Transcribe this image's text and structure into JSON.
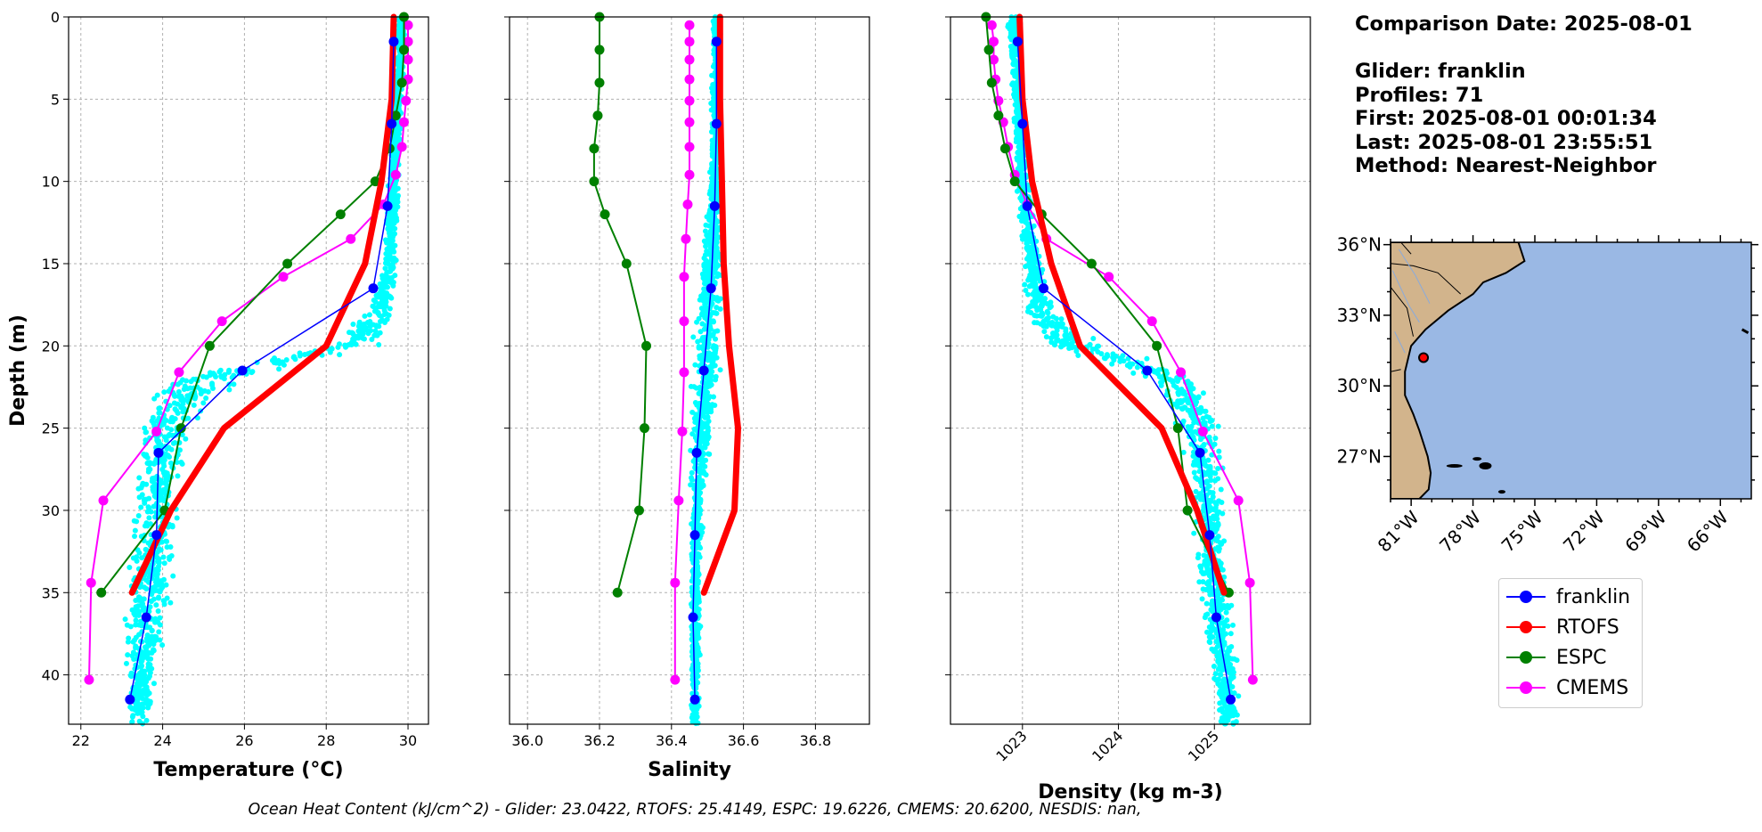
{
  "info": {
    "comparison_date": "Comparison Date: 2025-08-01",
    "glider": "Glider: franklin",
    "profiles": "Profiles: 71",
    "first": "First: 2025-08-01 00:01:34",
    "last": "Last: 2025-08-01 23:55:51",
    "method": "Method: Nearest-Neighbor"
  },
  "footer": "Ocean Heat Content (kJ/cm^2) - Glider: 23.0422,  RTOFS: 25.4149,  ESPC: 19.6226,  CMEMS: 20.6200,  NESDIS: nan,",
  "colors": {
    "franklin": "#0000ff",
    "rtofs": "#ff0000",
    "espc": "#008000",
    "cmems": "#ff00ff",
    "obs": "#00ffff",
    "land": "#d2b48c",
    "ocean": "#9ab8e4"
  },
  "legend": [
    {
      "label": "franklin",
      "color": "#0000ff"
    },
    {
      "label": "RTOFS",
      "color": "#ff0000"
    },
    {
      "label": "ESPC",
      "color": "#008000"
    },
    {
      "label": "CMEMS",
      "color": "#ff00ff"
    }
  ],
  "chart_data": [
    {
      "type": "line",
      "xlabel": "Temperature (°C)",
      "ylabel": "Depth (m)",
      "xlim": [
        21.7,
        30.5
      ],
      "ylim": [
        43,
        0
      ],
      "xticks": [
        22,
        24,
        26,
        28,
        30
      ],
      "yticks": [
        0,
        5,
        10,
        15,
        20,
        25,
        30,
        35,
        40
      ],
      "grid": true,
      "series": [
        {
          "name": "franklin",
          "color": "#0000ff",
          "width": 1.5,
          "depth": [
            1.5,
            6.5,
            11.5,
            16.5,
            21.5,
            26.5,
            31.5,
            36.5,
            41.5
          ],
          "values": [
            29.65,
            29.6,
            29.5,
            29.15,
            25.95,
            23.9,
            23.85,
            23.6,
            23.2
          ]
        },
        {
          "name": "RTOFS",
          "color": "#ff0000",
          "width": 7,
          "depth": [
            0,
            5,
            10,
            15,
            20,
            25,
            30,
            35
          ],
          "values": [
            29.65,
            29.6,
            29.35,
            28.95,
            28.0,
            25.5,
            24.2,
            23.25
          ]
        },
        {
          "name": "ESPC",
          "color": "#008000",
          "width": 2,
          "depth": [
            0,
            2,
            4,
            6,
            8,
            10,
            12,
            15,
            20,
            25,
            30,
            35
          ],
          "values": [
            29.9,
            29.9,
            29.85,
            29.7,
            29.55,
            29.2,
            28.35,
            27.05,
            25.15,
            24.45,
            24.05,
            22.5
          ]
        },
        {
          "name": "CMEMS",
          "color": "#ff00ff",
          "width": 2,
          "depth": [
            0.5,
            1.5,
            2.6,
            3.8,
            5.1,
            6.4,
            7.9,
            9.6,
            11.4,
            13.5,
            15.8,
            18.5,
            21.6,
            25.2,
            29.4,
            34.4,
            40.3
          ],
          "values": [
            30.0,
            30.0,
            30.0,
            30.0,
            29.95,
            29.9,
            29.85,
            29.7,
            29.4,
            28.6,
            26.95,
            25.45,
            24.4,
            23.85,
            22.55,
            22.25,
            22.2
          ]
        }
      ]
    },
    {
      "type": "line",
      "xlabel": "Salinity",
      "xlim": [
        35.95,
        36.95
      ],
      "ylim": [
        43,
        0
      ],
      "xticks": [
        36.0,
        36.2,
        36.4,
        36.6,
        36.8
      ],
      "grid": true,
      "series": [
        {
          "name": "franklin",
          "color": "#0000ff",
          "width": 1.5,
          "depth": [
            1.5,
            6.5,
            11.5,
            16.5,
            21.5,
            26.5,
            31.5,
            36.5,
            41.5
          ],
          "values": [
            36.525,
            36.525,
            36.52,
            36.51,
            36.49,
            36.47,
            36.465,
            36.46,
            36.465
          ]
        },
        {
          "name": "RTOFS",
          "color": "#ff0000",
          "width": 7,
          "depth": [
            0,
            5,
            10,
            15,
            20,
            25,
            30,
            35
          ],
          "values": [
            36.535,
            36.535,
            36.54,
            36.545,
            36.56,
            36.585,
            36.575,
            36.49
          ]
        },
        {
          "name": "ESPC",
          "color": "#008000",
          "width": 2,
          "depth": [
            0,
            2,
            4,
            6,
            8,
            10,
            12,
            15,
            20,
            25,
            30,
            35
          ],
          "values": [
            36.2,
            36.2,
            36.2,
            36.195,
            36.185,
            36.185,
            36.215,
            36.275,
            36.33,
            36.325,
            36.31,
            36.25
          ]
        },
        {
          "name": "CMEMS",
          "color": "#ff00ff",
          "width": 2,
          "depth": [
            0.5,
            1.5,
            2.6,
            3.8,
            5.1,
            6.4,
            7.9,
            9.6,
            11.4,
            13.5,
            15.8,
            18.5,
            21.6,
            25.2,
            29.4,
            34.4,
            40.3
          ],
          "values": [
            36.45,
            36.45,
            36.45,
            36.45,
            36.45,
            36.45,
            36.45,
            36.45,
            36.445,
            36.44,
            36.435,
            36.435,
            36.435,
            36.43,
            36.42,
            36.41,
            36.41
          ]
        }
      ]
    },
    {
      "type": "line",
      "xlabel": "Density (kg m-3)",
      "xlim": [
        1022.25,
        1026.0
      ],
      "ylim": [
        43,
        0
      ],
      "xticks": [
        1023,
        1024,
        1025
      ],
      "grid": true,
      "series": [
        {
          "name": "franklin",
          "color": "#0000ff",
          "width": 1.5,
          "depth": [
            1.5,
            6.5,
            11.5,
            16.5,
            21.5,
            26.5,
            31.5,
            36.5,
            41.5
          ],
          "values": [
            1022.95,
            1023.0,
            1023.05,
            1023.22,
            1024.3,
            1024.85,
            1024.95,
            1025.02,
            1025.17
          ]
        },
        {
          "name": "RTOFS",
          "color": "#ff0000",
          "width": 7,
          "depth": [
            0,
            5,
            10,
            15,
            20,
            25,
            30,
            35
          ],
          "values": [
            1022.97,
            1023.0,
            1023.1,
            1023.3,
            1023.6,
            1024.45,
            1024.82,
            1025.1
          ]
        },
        {
          "name": "ESPC",
          "color": "#008000",
          "width": 2,
          "depth": [
            0,
            2,
            4,
            6,
            8,
            10,
            12,
            15,
            20,
            25,
            30,
            35
          ],
          "values": [
            1022.62,
            1022.65,
            1022.68,
            1022.75,
            1022.82,
            1022.92,
            1023.2,
            1023.72,
            1024.4,
            1024.62,
            1024.72,
            1025.15
          ]
        },
        {
          "name": "CMEMS",
          "color": "#ff00ff",
          "width": 2,
          "depth": [
            0.5,
            1.5,
            2.6,
            3.8,
            5.1,
            6.4,
            7.9,
            9.6,
            11.4,
            13.5,
            15.8,
            18.5,
            21.6,
            25.2,
            29.4,
            34.4,
            40.3
          ],
          "values": [
            1022.68,
            1022.7,
            1022.7,
            1022.72,
            1022.75,
            1022.8,
            1022.85,
            1022.92,
            1023.05,
            1023.25,
            1023.9,
            1024.35,
            1024.65,
            1024.88,
            1025.25,
            1025.37,
            1025.4
          ]
        }
      ]
    },
    {
      "type": "map",
      "lon_range": [
        -82.0,
        -64.5
      ],
      "lat_range": [
        25.2,
        36.1
      ],
      "xticks": [
        -81,
        -78,
        -75,
        -72,
        -69,
        -66
      ],
      "xticklabels": [
        "81°W",
        "78°W",
        "75°W",
        "72°W",
        "69°W",
        "66°W"
      ],
      "yticks": [
        27,
        30,
        33,
        36
      ],
      "yticklabels": [
        "27°N",
        "30°N",
        "33°N",
        "36°N"
      ],
      "glider_track": {
        "lon": -80.4,
        "lat": 31.2
      }
    }
  ]
}
